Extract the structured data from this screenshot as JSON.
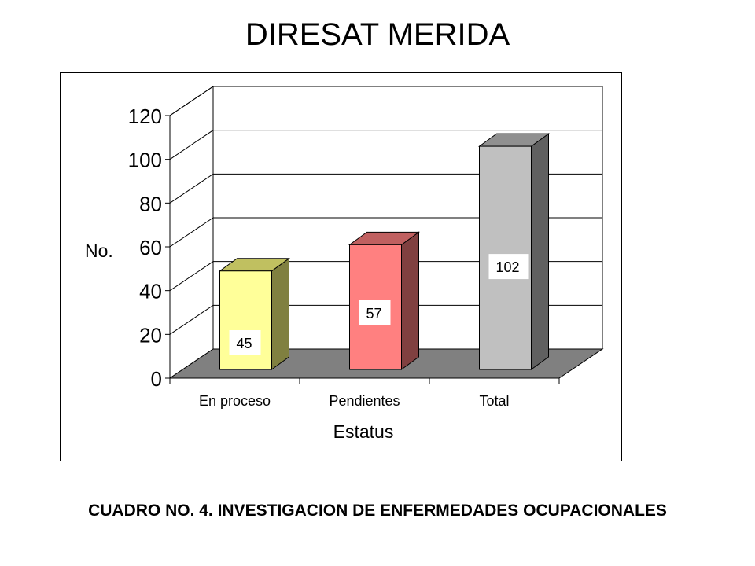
{
  "page": {
    "title": "DIRESAT MERIDA",
    "caption": "CUADRO NO. 4. INVESTIGACION DE ENFERMEDADES OCUPACIONALES"
  },
  "chart_data": {
    "type": "bar",
    "style": "3d-column",
    "title": "",
    "xlabel": "Estatus",
    "ylabel": "No.",
    "categories": [
      "En proceso",
      "Pendientes",
      "Total"
    ],
    "values": [
      45,
      57,
      102
    ],
    "data_labels": [
      "45",
      "57",
      "102"
    ],
    "ylim": [
      0,
      120
    ],
    "yticks": [
      0,
      20,
      40,
      60,
      80,
      100,
      120
    ],
    "grid": true,
    "legend": "none",
    "colors": {
      "bars": [
        "#ffff99",
        "#ff8080",
        "#c0c0c0"
      ],
      "bar_tops": [
        "#c0c060",
        "#c06060",
        "#909090"
      ],
      "bar_sides": [
        "#808040",
        "#804040",
        "#606060"
      ],
      "floor": "#808080",
      "walls": "#ffffff",
      "grid": "#000000"
    }
  }
}
